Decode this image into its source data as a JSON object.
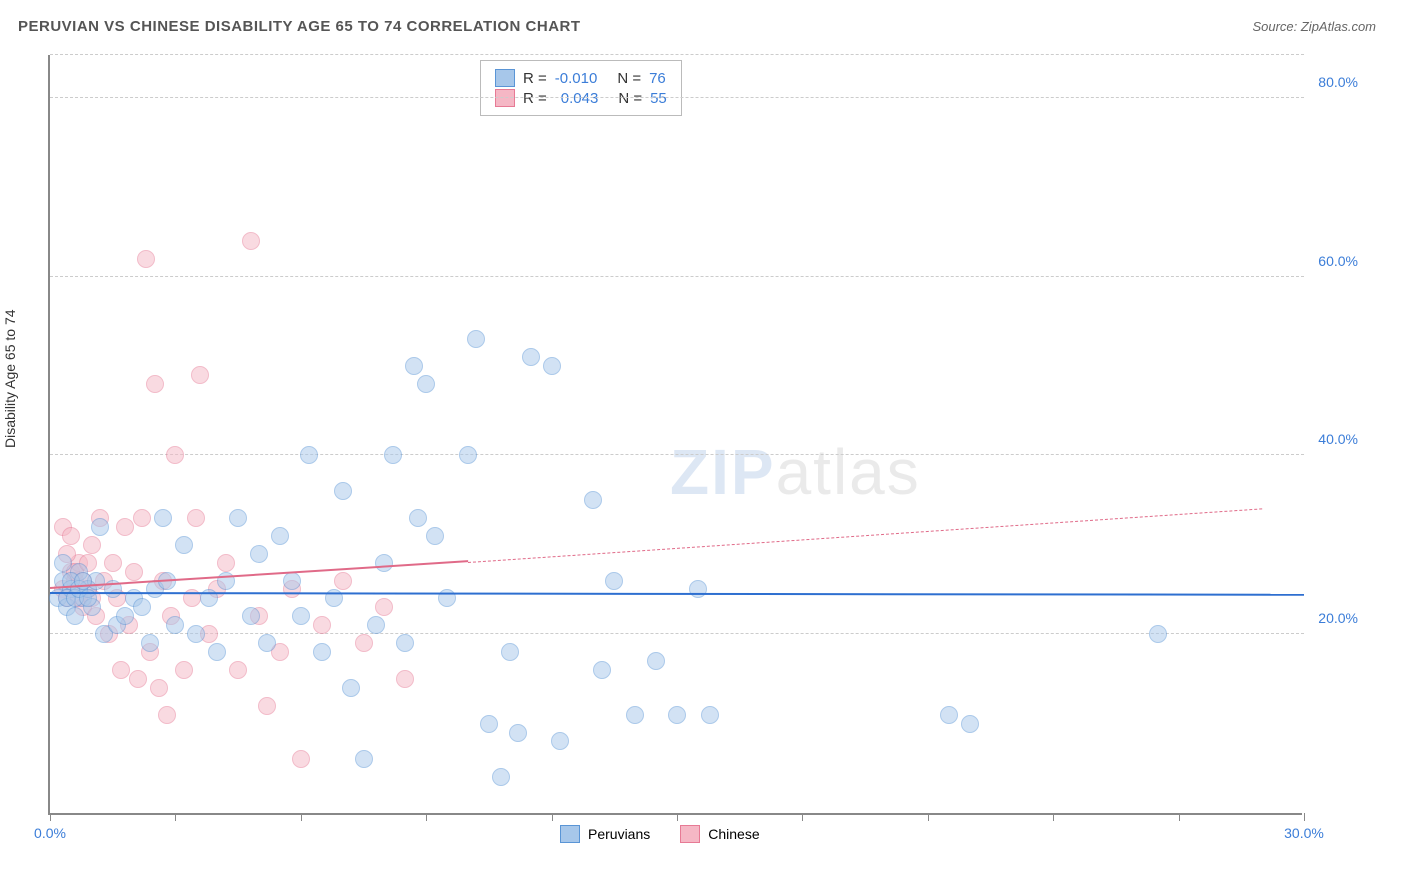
{
  "title": "PERUVIAN VS CHINESE DISABILITY AGE 65 TO 74 CORRELATION CHART",
  "source_label": "Source: ZipAtlas.com",
  "y_axis_label": "Disability Age 65 to 74",
  "watermark_1": "ZIP",
  "watermark_2": "atlas",
  "chart": {
    "type": "scatter",
    "xlim": [
      0,
      30
    ],
    "ylim": [
      0,
      85
    ],
    "x_ticks": [
      0,
      3,
      6,
      9,
      12,
      15,
      18,
      21,
      24,
      27,
      30
    ],
    "x_tick_labels": {
      "0": "0.0%",
      "30": "30.0%"
    },
    "y_gridlines": [
      20,
      40,
      60,
      80
    ],
    "y_tick_labels": {
      "20": "20.0%",
      "40": "40.0%",
      "60": "60.0%",
      "80": "80.0%"
    },
    "background_color": "#ffffff",
    "grid_color": "#cccccc",
    "axis_color": "#888888",
    "series": [
      {
        "name": "Peruvians",
        "fill": "#a7c7ea",
        "stroke": "#5a95d6",
        "marker_radius": 9,
        "fill_opacity": 0.5,
        "r_value": "-0.010",
        "n_value": "76",
        "trend": {
          "color": "#2e6fd0",
          "solid_from_x": 0,
          "solid_to_x": 30,
          "y_start": 24.5,
          "y_end": 24.3
        },
        "points": [
          [
            0.2,
            24
          ],
          [
            0.3,
            26
          ],
          [
            0.4,
            23
          ],
          [
            0.5,
            25
          ],
          [
            0.6,
            22
          ],
          [
            0.7,
            27
          ],
          [
            0.8,
            24
          ],
          [
            0.9,
            25
          ],
          [
            1.0,
            23
          ],
          [
            1.1,
            26
          ],
          [
            1.2,
            32
          ],
          [
            1.3,
            20
          ],
          [
            1.5,
            25
          ],
          [
            1.6,
            21
          ],
          [
            1.8,
            22
          ],
          [
            2.0,
            24
          ],
          [
            2.2,
            23
          ],
          [
            2.4,
            19
          ],
          [
            2.5,
            25
          ],
          [
            2.7,
            33
          ],
          [
            2.8,
            26
          ],
          [
            3.0,
            21
          ],
          [
            3.2,
            30
          ],
          [
            3.5,
            20
          ],
          [
            3.8,
            24
          ],
          [
            4.0,
            18
          ],
          [
            4.2,
            26
          ],
          [
            4.5,
            33
          ],
          [
            4.8,
            22
          ],
          [
            5.0,
            29
          ],
          [
            5.2,
            19
          ],
          [
            5.5,
            31
          ],
          [
            5.8,
            26
          ],
          [
            6.0,
            22
          ],
          [
            6.2,
            40
          ],
          [
            6.5,
            18
          ],
          [
            6.8,
            24
          ],
          [
            7.0,
            36
          ],
          [
            7.2,
            14
          ],
          [
            7.5,
            6
          ],
          [
            7.8,
            21
          ],
          [
            8.0,
            28
          ],
          [
            8.2,
            40
          ],
          [
            8.5,
            19
          ],
          [
            8.7,
            50
          ],
          [
            8.8,
            33
          ],
          [
            9.0,
            48
          ],
          [
            9.2,
            31
          ],
          [
            9.5,
            24
          ],
          [
            10.0,
            40
          ],
          [
            10.2,
            53
          ],
          [
            10.5,
            10
          ],
          [
            10.8,
            4
          ],
          [
            11.0,
            18
          ],
          [
            11.2,
            9
          ],
          [
            11.5,
            51
          ],
          [
            12.0,
            50
          ],
          [
            12.2,
            8
          ],
          [
            13.0,
            35
          ],
          [
            13.2,
            16
          ],
          [
            13.5,
            26
          ],
          [
            14.0,
            11
          ],
          [
            14.5,
            17
          ],
          [
            15.0,
            11
          ],
          [
            15.5,
            25
          ],
          [
            15.8,
            11
          ],
          [
            21.5,
            11
          ],
          [
            22.0,
            10
          ],
          [
            26.5,
            20
          ],
          [
            0.3,
            28
          ],
          [
            0.4,
            24
          ],
          [
            0.5,
            26
          ],
          [
            0.6,
            24
          ],
          [
            0.7,
            25
          ],
          [
            0.8,
            26
          ],
          [
            0.9,
            24
          ]
        ]
      },
      {
        "name": "Chinese",
        "fill": "#f5b7c5",
        "stroke": "#e77a95",
        "marker_radius": 9,
        "fill_opacity": 0.5,
        "r_value": "0.043",
        "n_value": "55",
        "trend": {
          "color": "#e06a88",
          "solid_from_x": 0,
          "solid_to_x": 10,
          "y_start": 25,
          "y_end": 28,
          "dashed_to_x": 29,
          "dashed_y_end": 34
        },
        "points": [
          [
            0.3,
            25
          ],
          [
            0.4,
            24
          ],
          [
            0.5,
            27
          ],
          [
            0.6,
            26
          ],
          [
            0.7,
            28
          ],
          [
            0.8,
            23
          ],
          [
            0.9,
            25
          ],
          [
            1.0,
            30
          ],
          [
            1.1,
            22
          ],
          [
            1.2,
            33
          ],
          [
            1.3,
            26
          ],
          [
            1.4,
            20
          ],
          [
            1.5,
            28
          ],
          [
            1.6,
            24
          ],
          [
            1.7,
            16
          ],
          [
            1.8,
            32
          ],
          [
            1.9,
            21
          ],
          [
            2.0,
            27
          ],
          [
            2.1,
            15
          ],
          [
            2.2,
            33
          ],
          [
            2.3,
            62
          ],
          [
            2.4,
            18
          ],
          [
            2.5,
            48
          ],
          [
            2.6,
            14
          ],
          [
            2.7,
            26
          ],
          [
            2.8,
            11
          ],
          [
            2.9,
            22
          ],
          [
            3.0,
            40
          ],
          [
            3.2,
            16
          ],
          [
            3.4,
            24
          ],
          [
            3.5,
            33
          ],
          [
            3.6,
            49
          ],
          [
            3.8,
            20
          ],
          [
            4.0,
            25
          ],
          [
            4.2,
            28
          ],
          [
            4.5,
            16
          ],
          [
            4.8,
            64
          ],
          [
            5.0,
            22
          ],
          [
            5.2,
            12
          ],
          [
            5.5,
            18
          ],
          [
            5.8,
            25
          ],
          [
            6.0,
            6
          ],
          [
            6.5,
            21
          ],
          [
            7.0,
            26
          ],
          [
            7.5,
            19
          ],
          [
            8.0,
            23
          ],
          [
            8.5,
            15
          ],
          [
            0.3,
            32
          ],
          [
            0.4,
            29
          ],
          [
            0.5,
            31
          ],
          [
            0.6,
            27
          ],
          [
            0.7,
            24
          ],
          [
            0.8,
            26
          ],
          [
            0.9,
            28
          ],
          [
            1.0,
            24
          ]
        ]
      }
    ]
  },
  "legend_main": {
    "r_label": "R =",
    "n_label": "N ="
  },
  "bottom_legend": [
    "Peruvians",
    "Chinese"
  ]
}
